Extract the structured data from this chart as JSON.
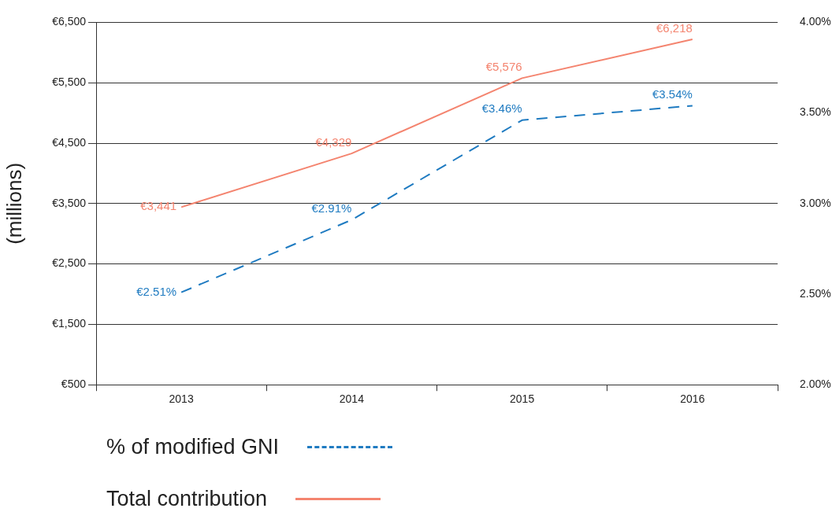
{
  "chart_data": {
    "type": "line",
    "ylabel": "(millions)",
    "categories": [
      "2013",
      "2014",
      "2015",
      "2016"
    ],
    "series": [
      {
        "name": "% of modified GNI",
        "color": "#1f7bc1",
        "axis": "y2",
        "line_style": "dashed",
        "values": [
          2.51,
          2.91,
          3.46,
          3.54
        ],
        "value_labels": [
          "€2.51%",
          "€2.91%",
          "€3.46%",
          "€3.54%"
        ]
      },
      {
        "name": "Total contribution",
        "color": "#f4846f",
        "axis": "y",
        "line_style": "solid",
        "values": [
          3441,
          4329,
          5576,
          6218
        ],
        "value_labels": [
          "€3,441",
          "€4,329",
          "€5,576",
          "€6,218"
        ]
      }
    ],
    "ylim": [
      500,
      6500
    ],
    "yticks": [
      {
        "value": 500,
        "label": "€500"
      },
      {
        "value": 1500,
        "label": "€1,500"
      },
      {
        "value": 2500,
        "label": "€2,500"
      },
      {
        "value": 3500,
        "label": "€3,500"
      },
      {
        "value": 4500,
        "label": "€4,500"
      },
      {
        "value": 5500,
        "label": "€5,500"
      },
      {
        "value": 6500,
        "label": "€6,500"
      }
    ],
    "y2lim": [
      2,
      4
    ],
    "y2ticks": [
      {
        "value": 2,
        "label": "2.00%"
      },
      {
        "value": 2.5,
        "label": "2.50%"
      },
      {
        "value": 3,
        "label": "3.00%"
      },
      {
        "value": 3.5,
        "label": "3.50%"
      },
      {
        "value": 4,
        "label": "4.00%"
      }
    ],
    "grid": "y",
    "marker": "none",
    "legend": "bottom left"
  }
}
